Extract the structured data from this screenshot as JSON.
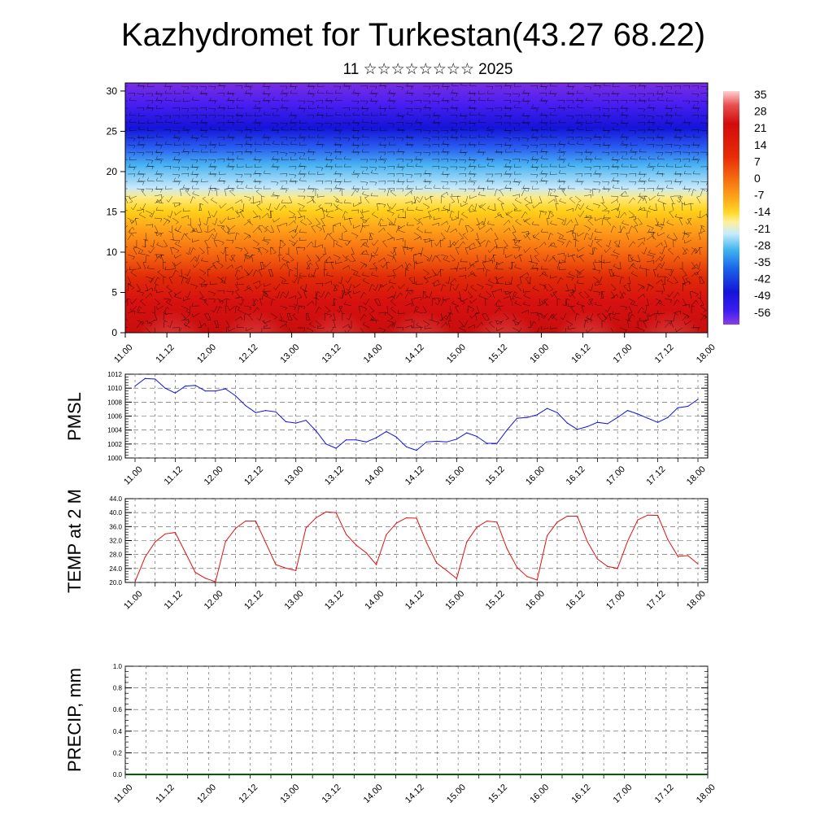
{
  "header": {
    "title": "Kazhydromet for Turkestan(43.27 68.22)",
    "subtitle": "11 ☆☆☆☆☆☆☆☆ 2025"
  },
  "colors": {
    "pmsl_line": "#1010e0",
    "temp_line": "#e01010",
    "precip_line": "#006000",
    "frame": "#000000"
  },
  "chart_data": [
    {
      "type": "heatmap",
      "title": "Kazhydromet for Turkestan(43.27 68.22)",
      "x_ticks": [
        "11.00",
        "11.12",
        "12.00",
        "12.12",
        "13.00",
        "13.12",
        "14.00",
        "14.12",
        "15.00",
        "15.12",
        "16.00",
        "16.12",
        "17.00",
        "17.12",
        "18.00"
      ],
      "y_ticks": [
        "0",
        "5",
        "10",
        "15",
        "20",
        "25",
        "30"
      ],
      "ylim": [
        0,
        31
      ],
      "colorbar_labels": [
        "35",
        "28",
        "21",
        "14",
        "7",
        "0",
        "-7",
        "-14",
        "-21",
        "-28",
        "-35",
        "-42",
        "-49",
        "-56"
      ],
      "colorbar_range": [
        -60,
        38
      ],
      "overlay": "wind barbs"
    },
    {
      "type": "line",
      "ylabel": "PMSL",
      "x_ticks": [
        "11.00",
        "11.12",
        "12.00",
        "12.12",
        "13.00",
        "13.12",
        "14.00",
        "14.12",
        "15.00",
        "15.12",
        "16.00",
        "16.12",
        "17.00",
        "17.12",
        "18.00"
      ],
      "y_ticks": [
        "1000",
        "1002",
        "1004",
        "1006",
        "1008",
        "1010",
        "1012"
      ],
      "ylim": [
        1000,
        1012
      ],
      "x": [
        0,
        3,
        6,
        9,
        12,
        15,
        18,
        21,
        24,
        27,
        30,
        33,
        36,
        39,
        42,
        45,
        48,
        51,
        54,
        57,
        60,
        63,
        66,
        69,
        72,
        75,
        78,
        81,
        84,
        87,
        90,
        93,
        96,
        99,
        102,
        105,
        108,
        111,
        114,
        117,
        120,
        123,
        126,
        129,
        132,
        135,
        138,
        141,
        144,
        147,
        150,
        153,
        156,
        159,
        162,
        165,
        168
      ],
      "values": [
        1010.3,
        1011.4,
        1011.3,
        1010.0,
        1009.3,
        1010.3,
        1010.4,
        1009.6,
        1009.6,
        1009.9,
        1008.9,
        1007.5,
        1006.5,
        1006.8,
        1006.6,
        1005.2,
        1005.0,
        1005.4,
        1003.9,
        1002.0,
        1001.4,
        1002.6,
        1002.6,
        1002.3,
        1002.9,
        1003.8,
        1003.0,
        1001.6,
        1001.1,
        1002.3,
        1002.4,
        1002.3,
        1002.7,
        1003.6,
        1003.1,
        1002.1,
        1002.1,
        1004.0,
        1005.7,
        1005.8,
        1006.2,
        1007.1,
        1006.5,
        1005.0,
        1004.1,
        1004.5,
        1005.1,
        1004.9,
        1005.8,
        1006.8,
        1006.3,
        1005.7,
        1005.1,
        1005.8,
        1007.2,
        1007.4,
        1008.4
      ]
    },
    {
      "type": "line",
      "ylabel": "TEMP at 2 M",
      "x_ticks": [
        "11.00",
        "11.12",
        "12.00",
        "12.12",
        "13.00",
        "13.12",
        "14.00",
        "14.12",
        "15.00",
        "15.12",
        "16.00",
        "16.12",
        "17.00",
        "17.12",
        "18.00"
      ],
      "y_ticks": [
        "20.0",
        "24.0",
        "28.0",
        "32.0",
        "36.0",
        "40.0",
        "44.0"
      ],
      "ylim": [
        20,
        44
      ],
      "x": [
        0,
        3,
        6,
        9,
        12,
        15,
        18,
        21,
        24,
        27,
        30,
        33,
        36,
        39,
        42,
        45,
        48,
        51,
        54,
        57,
        60,
        63,
        66,
        69,
        72,
        75,
        78,
        81,
        84,
        87,
        90,
        93,
        96,
        99,
        102,
        105,
        108,
        111,
        114,
        117,
        120,
        123,
        126,
        129,
        132,
        135,
        138,
        141,
        144,
        147,
        150,
        153,
        156,
        159,
        162,
        165,
        168
      ],
      "values": [
        20.2,
        27.3,
        31.6,
        33.9,
        34.3,
        28.6,
        22.9,
        21.2,
        20.2,
        31.7,
        35.5,
        37.6,
        37.6,
        31.4,
        25.1,
        24.1,
        23.4,
        35.6,
        38.5,
        40.2,
        40.0,
        33.8,
        30.7,
        28.5,
        25.1,
        33.7,
        37.0,
        38.5,
        38.4,
        31.4,
        25.6,
        23.4,
        21.1,
        31.6,
        35.8,
        37.6,
        37.3,
        29.7,
        24.3,
        21.7,
        20.7,
        33.4,
        37.3,
        39.0,
        39.0,
        31.7,
        26.7,
        24.6,
        24.0,
        31.8,
        37.9,
        39.3,
        39.2,
        32.3,
        27.5,
        27.7,
        25.3
      ]
    },
    {
      "type": "line",
      "ylabel": "PRECIP, mm",
      "x_ticks": [
        "11.00",
        "11.12",
        "12.00",
        "12.12",
        "13.00",
        "13.12",
        "14.00",
        "14.12",
        "15.00",
        "15.12",
        "16.00",
        "16.12",
        "17.00",
        "17.12",
        "18.00"
      ],
      "y_ticks": [
        "0.0",
        "0.2",
        "0.4",
        "0.6",
        "0.8",
        "1.0"
      ],
      "ylim": [
        0,
        1
      ],
      "x": [
        0,
        168
      ],
      "values": [
        0,
        0
      ]
    }
  ]
}
